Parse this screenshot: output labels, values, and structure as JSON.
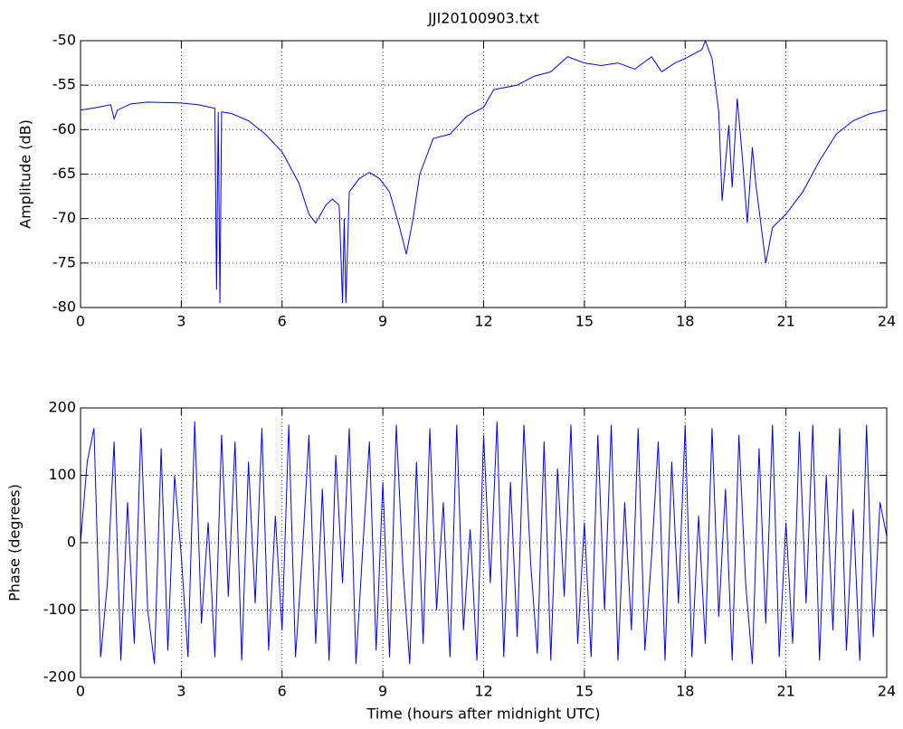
{
  "chart_data": [
    {
      "type": "line",
      "title": "JJI20100903.txt",
      "y_label": "Amplitude (dB)",
      "x": [
        0,
        0.5,
        0.9,
        1.0,
        1.1,
        1.5,
        2,
        3,
        3.5,
        4.0,
        4.05,
        4.1,
        4.15,
        4.2,
        4.5,
        5,
        5.5,
        6,
        6.5,
        6.8,
        7.0,
        7.3,
        7.5,
        7.7,
        7.8,
        7.85,
        7.9,
        8.0,
        8.3,
        8.6,
        8.9,
        9.2,
        9.5,
        9.7,
        9.9,
        10.1,
        10.5,
        11,
        11.5,
        12,
        12.3,
        13,
        13.5,
        14,
        14.5,
        15,
        15.5,
        16,
        16.5,
        17,
        17.3,
        17.7,
        18,
        18.5,
        18.6,
        18.8,
        19.0,
        19.1,
        19.3,
        19.4,
        19.55,
        19.7,
        19.85,
        20.0,
        20.1,
        20.3,
        20.4,
        20.6,
        21,
        21.5,
        22,
        22.5,
        23,
        23.5,
        24
      ],
      "series": [
        {
          "name": "Amplitude",
          "color": "#0000ff",
          "values": [
            -57.8,
            -57.5,
            -57.2,
            -58.8,
            -57.8,
            -57.1,
            -56.9,
            -57,
            -57.2,
            -57.6,
            -78,
            -58,
            -79.5,
            -58,
            -58.2,
            -59,
            -60.5,
            -62.5,
            -66,
            -69.5,
            -70.5,
            -68.5,
            -67.8,
            -68.5,
            -79.5,
            -70,
            -79.5,
            -67,
            -65.5,
            -64.8,
            -65.5,
            -67,
            -71,
            -74,
            -70,
            -65,
            -61,
            -60.5,
            -58.5,
            -57.5,
            -55.5,
            -55,
            -54,
            -53.5,
            -51.8,
            -52.5,
            -52.8,
            -52.5,
            -53.2,
            -51.8,
            -53.5,
            -52.5,
            -52,
            -51,
            -50,
            -52,
            -58,
            -68,
            -59.5,
            -66.5,
            -56.5,
            -63,
            -70.5,
            -62,
            -66,
            -72,
            -75,
            -71,
            -69.5,
            -67,
            -63.5,
            -60.5,
            -59,
            -58.2,
            -57.8
          ]
        }
      ],
      "xlim": [
        0,
        24
      ],
      "xticks": [
        0,
        3,
        6,
        9,
        12,
        15,
        18,
        21,
        24
      ],
      "ylim": [
        -80,
        -50
      ],
      "yticks": [
        -80,
        -75,
        -70,
        -65,
        -60,
        -55,
        -50
      ],
      "grid": true
    },
    {
      "type": "line",
      "x_label": "Time (hours after midnight UTC)",
      "y_label": "Phase (degrees)",
      "x": [
        0,
        0.2,
        0.4,
        0.6,
        0.8,
        1,
        1.2,
        1.4,
        1.6,
        1.8,
        2,
        2.2,
        2.4,
        2.6,
        2.8,
        3,
        3.2,
        3.4,
        3.6,
        3.8,
        4,
        4.2,
        4.4,
        4.6,
        4.8,
        5,
        5.2,
        5.4,
        5.6,
        5.8,
        6,
        6.2,
        6.4,
        6.6,
        6.8,
        7,
        7.2,
        7.4,
        7.6,
        7.8,
        8,
        8.2,
        8.4,
        8.6,
        8.8,
        9,
        9.2,
        9.4,
        9.6,
        9.8,
        10,
        10.2,
        10.4,
        10.6,
        10.8,
        11,
        11.2,
        11.4,
        11.6,
        11.8,
        12,
        12.2,
        12.4,
        12.6,
        12.8,
        13,
        13.2,
        13.4,
        13.6,
        13.8,
        14,
        14.2,
        14.4,
        14.6,
        14.8,
        15,
        15.2,
        15.4,
        15.6,
        15.8,
        16,
        16.2,
        16.4,
        16.6,
        16.8,
        17,
        17.2,
        17.4,
        17.6,
        17.8,
        18,
        18.2,
        18.4,
        18.6,
        18.8,
        19,
        19.2,
        19.4,
        19.6,
        19.8,
        20,
        20.2,
        20.4,
        20.6,
        20.8,
        21,
        21.2,
        21.4,
        21.6,
        21.8,
        22,
        22.2,
        22.4,
        22.6,
        22.8,
        23,
        23.2,
        23.4,
        23.6,
        23.8,
        24
      ],
      "series": [
        {
          "name": "Phase",
          "color": "#0000ff",
          "values": [
            0,
            120,
            170,
            -170,
            -60,
            150,
            -175,
            60,
            -150,
            170,
            -100,
            -180,
            140,
            -160,
            100,
            -20,
            -170,
            180,
            -120,
            30,
            -170,
            160,
            -80,
            150,
            -175,
            120,
            -90,
            170,
            -160,
            40,
            -130,
            175,
            -170,
            -20,
            160,
            -150,
            80,
            -175,
            130,
            -60,
            170,
            -180,
            -10,
            150,
            -160,
            90,
            -170,
            175,
            -40,
            -180,
            120,
            -150,
            170,
            -100,
            60,
            -170,
            175,
            -130,
            20,
            -175,
            160,
            -60,
            180,
            -170,
            90,
            -140,
            175,
            -30,
            -165,
            150,
            -175,
            110,
            -80,
            175,
            -150,
            30,
            -170,
            160,
            -100,
            175,
            -175,
            60,
            -130,
            170,
            -160,
            -20,
            150,
            -175,
            120,
            -90,
            175,
            -170,
            40,
            -150,
            170,
            -110,
            80,
            -175,
            160,
            -60,
            -180,
            140,
            -120,
            175,
            -170,
            30,
            -150,
            165,
            -90,
            175,
            -175,
            100,
            -130,
            170,
            -160,
            50,
            -175,
            175,
            -140,
            60,
            10
          ]
        }
      ],
      "xlim": [
        0,
        24
      ],
      "xticks": [
        0,
        3,
        6,
        9,
        12,
        15,
        18,
        21,
        24
      ],
      "ylim": [
        -200,
        200
      ],
      "yticks": [
        -200,
        -100,
        0,
        100,
        200
      ],
      "grid": true
    }
  ]
}
